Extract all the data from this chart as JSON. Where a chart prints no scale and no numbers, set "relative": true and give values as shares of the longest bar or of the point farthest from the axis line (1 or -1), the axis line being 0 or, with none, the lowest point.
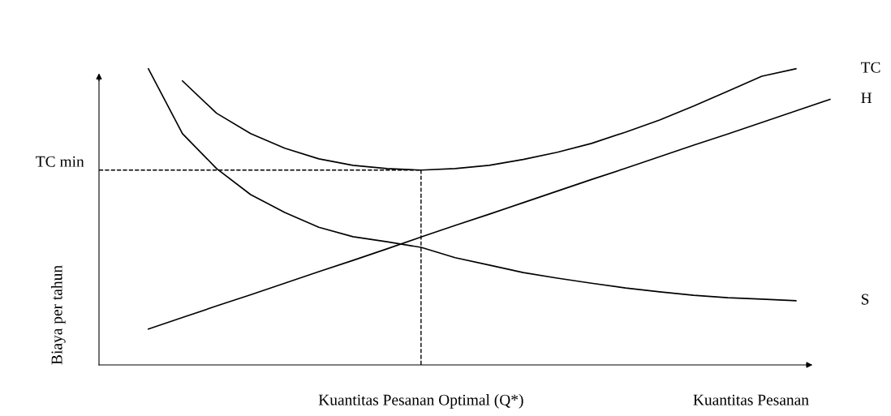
{
  "chart_data": {
    "type": "line",
    "relative": true,
    "xlabel": "Kuantitas Pesanan",
    "ylabel": "Biaya per tahun",
    "categories": [
      null,
      null,
      null,
      null,
      null,
      null,
      null,
      null,
      null,
      null,
      null,
      null,
      null,
      null,
      null,
      null,
      null,
      null,
      null,
      null,
      null
    ],
    "series": [
      {
        "name": "TC",
        "color": "#000000",
        "values": [
          null,
          0.959,
          0.85,
          0.781,
          0.732,
          0.696,
          0.674,
          0.663,
          0.658,
          0.663,
          0.674,
          0.694,
          0.718,
          0.748,
          0.786,
          0.827,
          0.874,
          0.924,
          0.975,
          1.0,
          null
        ]
      },
      {
        "name": "H",
        "color": "#000000",
        "values": [
          0.121,
          0.16,
          0.199,
          0.237,
          0.276,
          0.315,
          0.353,
          0.392,
          0.432,
          0.471,
          0.509,
          0.548,
          0.587,
          0.626,
          0.664,
          0.703,
          0.742,
          0.78,
          0.819,
          0.858,
          0.897
        ]
      },
      {
        "name": "S",
        "color": "#000000",
        "values": [
          1.0,
          0.781,
          0.663,
          0.575,
          0.515,
          0.465,
          0.433,
          0.416,
          0.397,
          0.362,
          0.337,
          0.312,
          0.293,
          0.276,
          0.26,
          0.247,
          0.235,
          0.227,
          0.222,
          0.217,
          null
        ]
      }
    ],
    "ref_lines": [
      {
        "axis": "y",
        "value": 0.658,
        "label": "TC min",
        "color": "#000000",
        "line_style": "dashed"
      }
    ],
    "annotations": [
      "Kuantitas Pesanan Optimal (Q*)"
    ],
    "tick_labels": false,
    "legend": false,
    "marker": "none",
    "line_style": "solid"
  }
}
